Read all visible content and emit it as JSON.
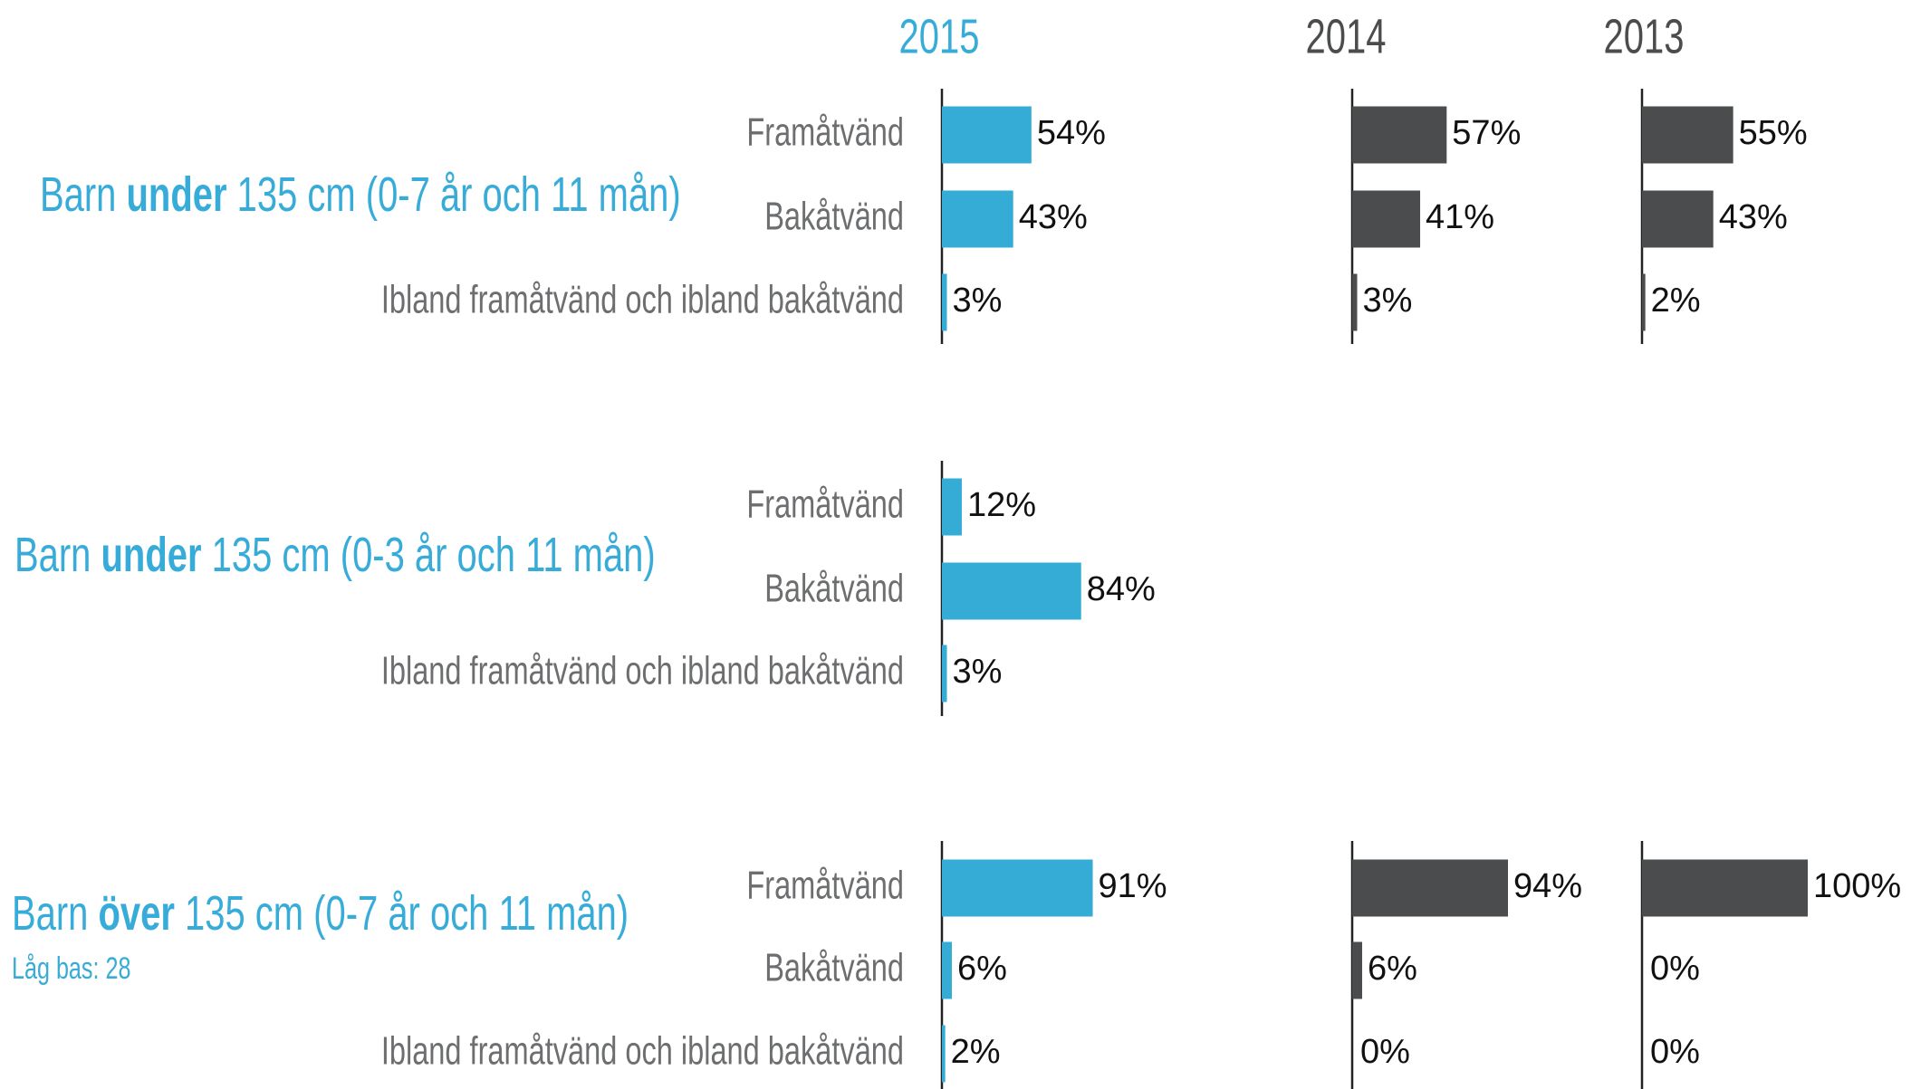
{
  "chart_data": [
    {
      "type": "bar",
      "title": [
        "Barn",
        "under",
        "135 cm (0-7 år och 11 mån)"
      ],
      "categories": [
        "Framåtvänd",
        "Bakåtvänd",
        "Ibland framåtvänd och ibland bakåtvänd"
      ],
      "series": [
        {
          "name": "2015",
          "color": "#35acd6",
          "values": [
            54,
            43,
            3
          ],
          "value_labels": [
            "54%",
            "43%",
            "3%"
          ]
        },
        {
          "name": "2014",
          "color": "#4a4c4e",
          "values": [
            57,
            41,
            3
          ],
          "value_labels": [
            "57%",
            "41%",
            "3%"
          ]
        },
        {
          "name": "2013",
          "color": "#4a4c4e",
          "values": [
            55,
            43,
            2
          ],
          "value_labels": [
            "55%",
            "43%",
            "2%"
          ]
        }
      ]
    },
    {
      "type": "bar",
      "title": [
        "Barn",
        "under",
        "135 cm (0-3 år och 11 mån)"
      ],
      "categories": [
        "Framåtvänd",
        "Bakåtvänd",
        "Ibland framåtvänd och ibland bakåtvänd"
      ],
      "series": [
        {
          "color": "#35acd6",
          "values": [
            12,
            84,
            3
          ],
          "value_labels": [
            "12%",
            "84%",
            "3%"
          ]
        }
      ]
    },
    {
      "type": "bar",
      "title": [
        "Barn",
        "över",
        "135 cm (0-7 år och 11 mån)"
      ],
      "subtitle": "Låg bas: 28",
      "categories": [
        "Framåtvänd",
        "Bakåtvänd",
        "Ibland framåtvänd och ibland bakåtvänd"
      ],
      "series": [
        {
          "color": "#35acd6",
          "values": [
            91,
            6,
            2
          ],
          "value_labels": [
            "91%",
            "6%",
            "2%"
          ]
        },
        {
          "color": "#4a4c4e",
          "values": [
            94,
            6,
            0
          ],
          "value_labels": [
            "94%",
            "6%",
            "0%"
          ]
        },
        {
          "color": "#4a4c4e",
          "values": [
            100,
            0,
            0
          ],
          "value_labels": [
            "100%",
            "0%",
            "0%"
          ]
        }
      ]
    }
  ]
}
